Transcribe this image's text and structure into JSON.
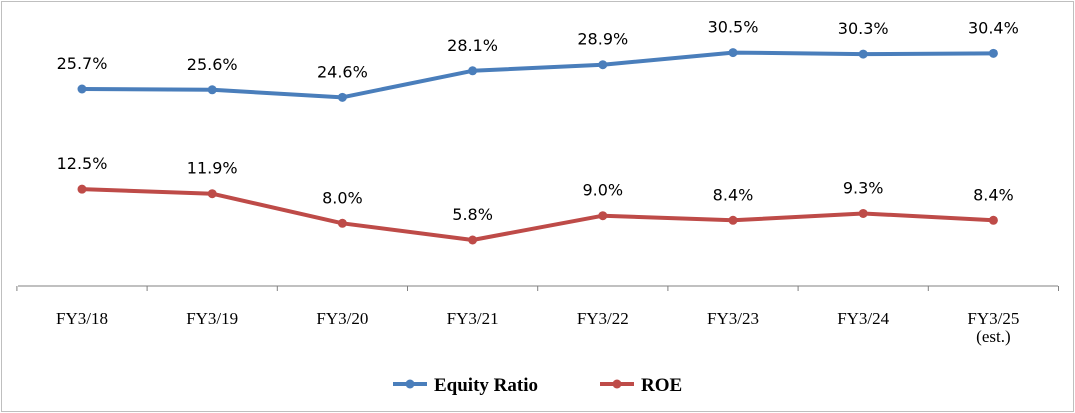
{
  "chart_data": {
    "type": "line",
    "categories": [
      "FY3/18",
      "FY3/19",
      "FY3/20",
      "FY3/21",
      "FY3/22",
      "FY3/23",
      "FY3/24",
      "FY3/25"
    ],
    "category_sublabels": [
      "",
      "",
      "",
      "",
      "",
      "",
      "",
      "(est.)"
    ],
    "series": [
      {
        "name": "Equity Ratio",
        "values": [
          25.7,
          25.6,
          24.6,
          28.1,
          28.9,
          30.5,
          30.3,
          30.4
        ],
        "labels": [
          "25.7%",
          "25.6%",
          "24.6%",
          "28.1%",
          "28.9%",
          "30.5%",
          "30.3%",
          "30.4%"
        ],
        "color": "#4a7ebb"
      },
      {
        "name": "ROE",
        "values": [
          12.5,
          11.9,
          8.0,
          5.8,
          9.0,
          8.4,
          9.3,
          8.4
        ],
        "labels": [
          "12.5%",
          "11.9%",
          "8.0%",
          "5.8%",
          "9.0%",
          "8.4%",
          "9.3%",
          "8.4%"
        ],
        "color": "#be4b48"
      }
    ],
    "ylim": [
      0,
      35
    ],
    "grid": false,
    "legend_position": "bottom"
  }
}
